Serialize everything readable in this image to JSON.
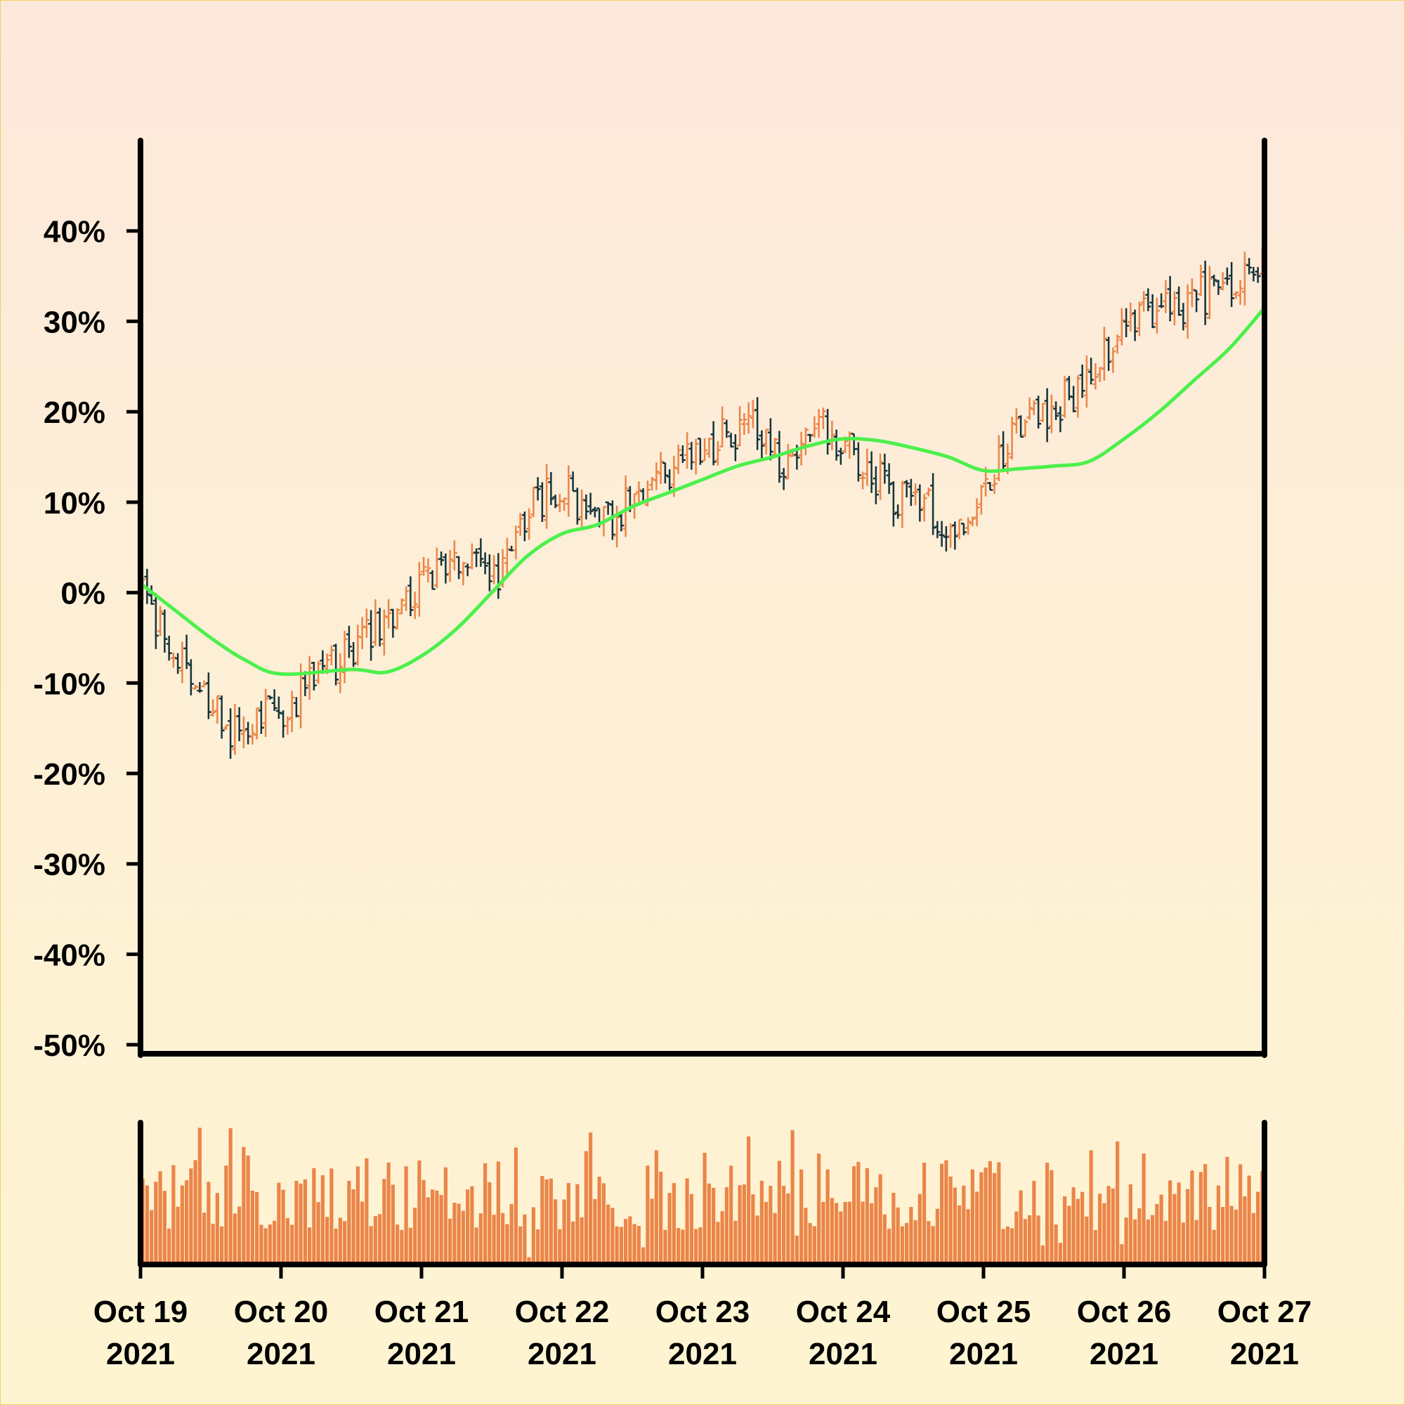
{
  "colors": {
    "up": "#eb8548",
    "down": "#15323a",
    "moving_average": "#4cf04c",
    "volume": "#eb8548",
    "axis": "#000000",
    "background_top": "#fde8dc",
    "background_bottom": "#fef4d2"
  },
  "chart_data": {
    "type": "ohlc",
    "title": "",
    "xlabel": "",
    "ylabel": "",
    "y_unit": "%",
    "ylim": [
      -51,
      50
    ],
    "yticks": [
      40,
      30,
      20,
      10,
      0,
      -10,
      -20,
      -30,
      -40,
      -50
    ],
    "ytick_labels": [
      "40%",
      "30%",
      "20%",
      "10%",
      "0%",
      "-10%",
      "-20%",
      "-30%",
      "-40%",
      "-50%"
    ],
    "x_range": [
      "2021-10-19",
      "2021-10-27"
    ],
    "x_ticks": [
      {
        "line1": "Oct 19",
        "line2": "2021",
        "date": "2021-10-19"
      },
      {
        "line1": "Oct 20",
        "line2": "2021",
        "date": "2021-10-20"
      },
      {
        "line1": "Oct 21",
        "line2": "2021",
        "date": "2021-10-21"
      },
      {
        "line1": "Oct 22",
        "line2": "2021",
        "date": "2021-10-22"
      },
      {
        "line1": "Oct 23",
        "line2": "2021",
        "date": "2021-10-23"
      },
      {
        "line1": "Oct 24",
        "line2": "2021",
        "date": "2021-10-24"
      },
      {
        "line1": "Oct 25",
        "line2": "2021",
        "date": "2021-10-25"
      },
      {
        "line1": "Oct 26",
        "line2": "2021",
        "date": "2021-10-26"
      },
      {
        "line1": "Oct 27",
        "line2": "2021",
        "date": "2021-10-27"
      }
    ],
    "price_anchors": {
      "x": [
        "2021-10-19 00:00",
        "2021-10-19 06:00",
        "2021-10-19 15:00",
        "2021-10-20 00:00",
        "2021-10-20 10:00",
        "2021-10-20 18:00",
        "2021-10-21 06:00",
        "2021-10-21 12:00",
        "2021-10-21 18:00",
        "2021-10-22 00:00",
        "2021-10-22 06:00",
        "2021-10-22 18:00",
        "2021-10-23 00:00",
        "2021-10-23 06:00",
        "2021-10-23 08:00",
        "2021-10-23 14:00",
        "2021-10-23 20:00",
        "2021-10-24 00:00",
        "2021-10-24 08:00",
        "2021-10-24 14:00",
        "2021-10-24 20:00",
        "2021-10-25 00:00",
        "2021-10-25 06:00",
        "2021-10-25 12:00",
        "2021-10-25 18:00",
        "2021-10-26 00:00",
        "2021-10-26 10:00",
        "2021-10-26 18:00",
        "2021-10-26 20:00",
        "2021-10-27 00:00"
      ],
      "y": [
        0,
        -7,
        -15,
        -13,
        -7,
        -3,
        4,
        1,
        9,
        12,
        7,
        13,
        16,
        18,
        20,
        13,
        18,
        17,
        11,
        10,
        7,
        10,
        19,
        20,
        24,
        30,
        32,
        34,
        36,
        36
      ]
    },
    "moving_average": {
      "x": [
        "2021-10-19 00:00",
        "2021-10-19 06:00",
        "2021-10-19 12:00",
        "2021-10-19 18:00",
        "2021-10-20 00:00",
        "2021-10-20 12:00",
        "2021-10-20 18:00",
        "2021-10-21 00:00",
        "2021-10-21 06:00",
        "2021-10-21 12:00",
        "2021-10-21 18:00",
        "2021-10-22 00:00",
        "2021-10-22 06:00",
        "2021-10-22 12:00",
        "2021-10-22 18:00",
        "2021-10-23 00:00",
        "2021-10-23 06:00",
        "2021-10-23 12:00",
        "2021-10-23 18:00",
        "2021-10-24 00:00",
        "2021-10-24 06:00",
        "2021-10-24 12:00",
        "2021-10-24 18:00",
        "2021-10-25 00:00",
        "2021-10-25 06:00",
        "2021-10-25 12:00",
        "2021-10-25 18:00",
        "2021-10-26 00:00",
        "2021-10-26 06:00",
        "2021-10-26 12:00",
        "2021-10-26 18:00",
        "2021-10-27 00:00"
      ],
      "y": [
        1,
        -2,
        -5,
        -7.5,
        -9,
        -8.5,
        -8.8,
        -7,
        -4,
        0,
        4,
        6.5,
        7.5,
        9.5,
        11,
        12.5,
        14,
        15,
        16.2,
        17,
        16.8,
        16,
        15,
        13.5,
        13.7,
        14,
        14.5,
        17,
        20,
        23.5,
        27,
        31.5
      ]
    },
    "volume": {
      "label": "Volume",
      "note": "relative bar heights, one per price bar"
    }
  }
}
